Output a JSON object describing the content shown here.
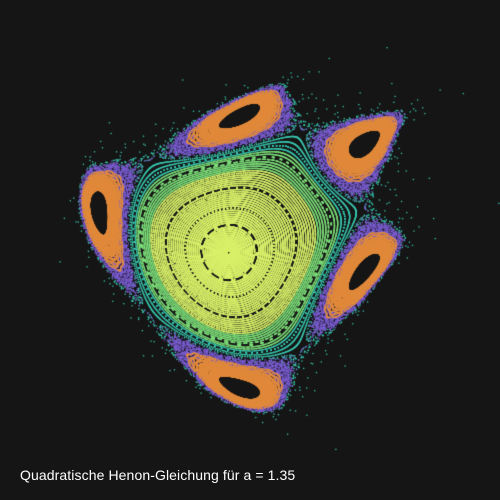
{
  "caption": "Quadratische Henon-Gleichung für a = 1.35",
  "parameter_a": 1.35,
  "colors": {
    "background": "#151515",
    "inner_curves": "#d8f06a",
    "mid_band": "#7ee07a",
    "outer_band": "#38c8b0",
    "violet_band": "#7a5cd0",
    "chaotic_scatter": "#e08a3c",
    "caption": "#ffffff"
  }
}
